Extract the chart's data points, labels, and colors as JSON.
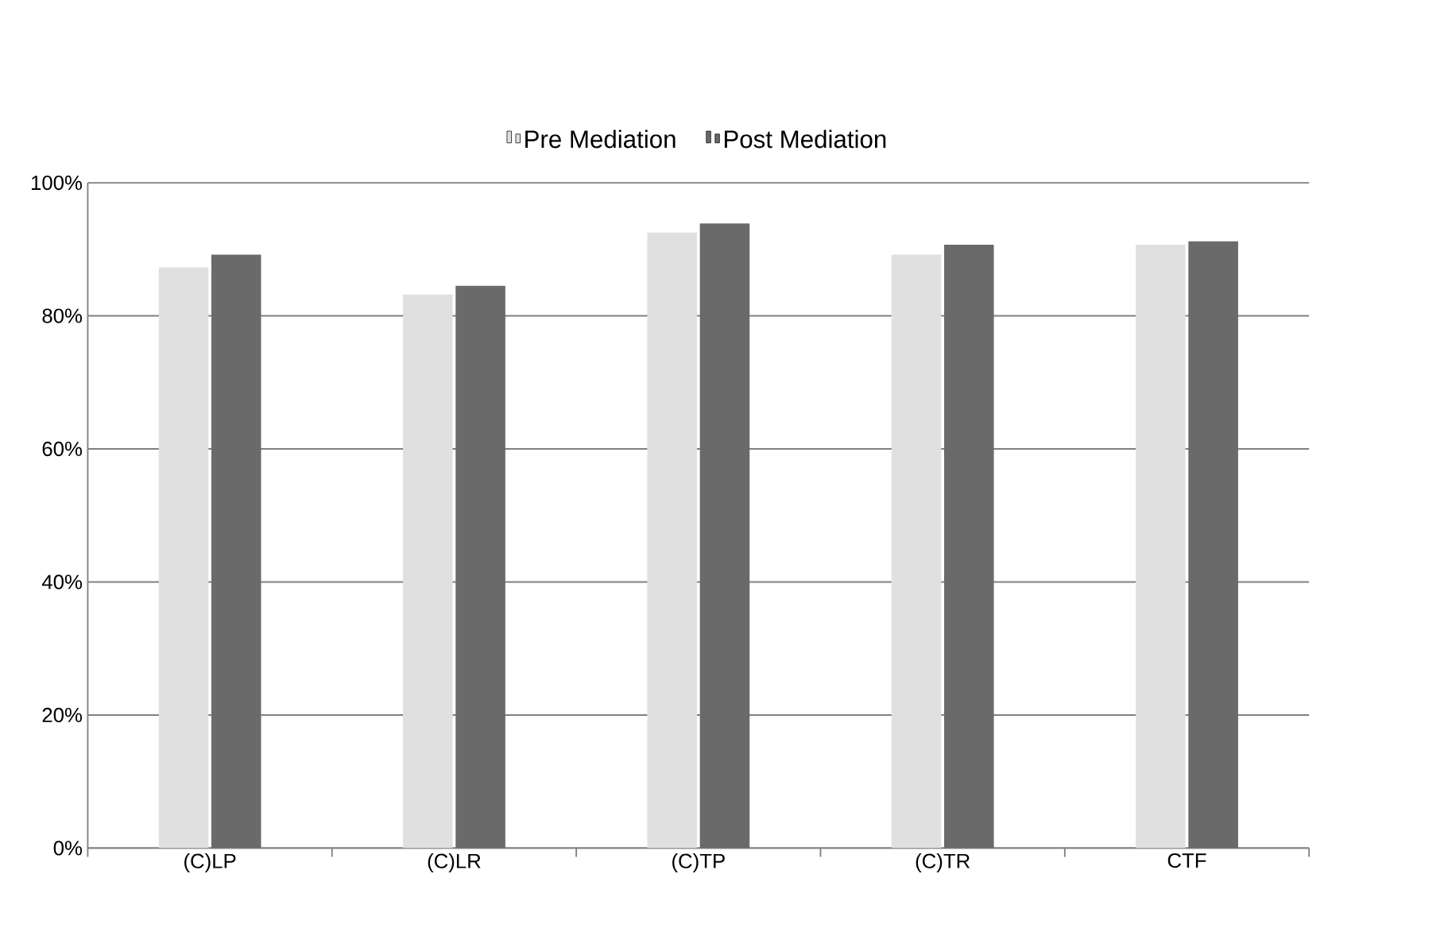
{
  "chart_data": {
    "type": "bar",
    "categories": [
      "(C)LP",
      "(C)LR",
      "(C)TP",
      "(C)TR",
      "CTF"
    ],
    "series": [
      {
        "name": "Pre Mediation",
        "color": "#e0e0e0",
        "values": [
          87.3,
          83.2,
          92.5,
          89.2,
          90.7
        ]
      },
      {
        "name": "Post Mediation",
        "color": "#6a6a6a",
        "values": [
          89.2,
          84.5,
          93.9,
          90.7,
          91.2
        ]
      }
    ],
    "ylim": [
      0,
      100
    ],
    "yticks": [
      {
        "value": 0,
        "label": "0%"
      },
      {
        "value": 20,
        "label": "20%"
      },
      {
        "value": 40,
        "label": "40%"
      },
      {
        "value": 60,
        "label": "60%"
      },
      {
        "value": 80,
        "label": "80%"
      },
      {
        "value": 100,
        "label": "100%"
      }
    ],
    "grid": "y",
    "legend": "top"
  }
}
